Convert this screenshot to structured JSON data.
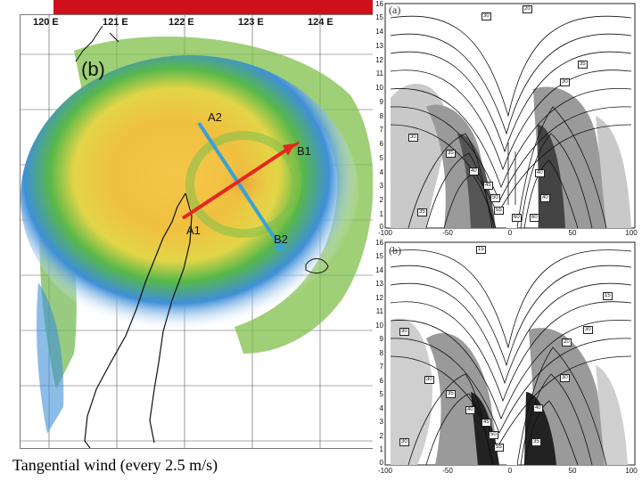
{
  "caption": "Tangential wind (every 2.5 m/s)",
  "map": {
    "panel_label": "(b)",
    "longitudes": [
      "120 E",
      "121 E",
      "122 E",
      "123 E",
      "124 E"
    ],
    "points": {
      "a1": "A1",
      "a2": "A2",
      "b1": "B1",
      "b2": "B2"
    },
    "colors": {
      "line_a": "#3aa0d8",
      "line_b": "#e5261f",
      "banner": "#d0101a"
    }
  },
  "cross_sections": [
    {
      "tag": "(a)",
      "y_ticks": [
        "16",
        "15",
        "14",
        "13",
        "12",
        "11",
        "10",
        "9",
        "8",
        "7",
        "6",
        "5",
        "4",
        "3",
        "2",
        "1",
        "0"
      ],
      "x_ticks": [
        "-100",
        "-50",
        "0",
        "50",
        "100"
      ],
      "contour_labels": [
        "30",
        "20",
        "35",
        "30",
        "30",
        "35",
        "40",
        "45",
        "50",
        "55",
        "60",
        "35",
        "60",
        "40",
        "40"
      ]
    },
    {
      "tag": "(b)",
      "y_ticks": [
        "16",
        "15",
        "14",
        "13",
        "12",
        "11",
        "10",
        "9",
        "8",
        "7",
        "6",
        "5",
        "4",
        "3",
        "2",
        "1",
        "0"
      ],
      "x_ticks": [
        "-100",
        "-50",
        "0",
        "50",
        "100"
      ],
      "contour_labels": [
        "15",
        "15",
        "30",
        "20",
        "30",
        "30",
        "35",
        "40",
        "45",
        "50",
        "55",
        "40",
        "30",
        "30",
        "35"
      ]
    }
  ]
}
